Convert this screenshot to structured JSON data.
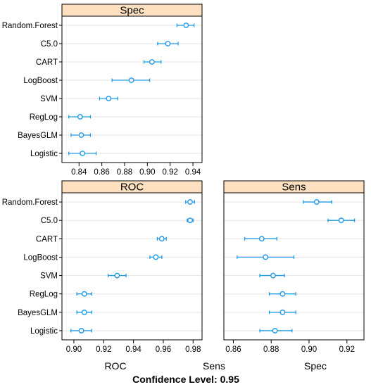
{
  "footer": "Confidence Level: 0.95",
  "bottom_labels": {
    "left": "ROC",
    "middle": "Sens",
    "right": "Spec"
  },
  "colors": {
    "strip_bg": "#fde0bf",
    "point": "#1f9ae6",
    "grid": "#e6e6e6",
    "frame": "#000000"
  },
  "chart_data": [
    {
      "type": "dotplot",
      "title": "Spec",
      "categories": [
        "Random.Forest",
        "C5.0",
        "CART",
        "LogBoost",
        "SVM",
        "RegLog",
        "BayesGLM",
        "Logistic"
      ],
      "estimate": [
        0.934,
        0.918,
        0.904,
        0.886,
        0.866,
        0.841,
        0.842,
        0.843
      ],
      "lower": [
        0.926,
        0.909,
        0.897,
        0.869,
        0.858,
        0.831,
        0.833,
        0.831
      ],
      "upper": [
        0.941,
        0.927,
        0.912,
        0.902,
        0.874,
        0.85,
        0.85,
        0.855
      ],
      "xlim": [
        0.825,
        0.948
      ],
      "xticks": [
        0.84,
        0.86,
        0.88,
        0.9,
        0.92,
        0.94
      ],
      "tick_labels": [
        "0.84",
        "0.86",
        "0.88",
        "0.90",
        "0.92",
        "0.94"
      ],
      "grid": true
    },
    {
      "type": "dotplot",
      "title": "ROC",
      "categories": [
        "Random.Forest",
        "C5.0",
        "CART",
        "LogBoost",
        "SVM",
        "RegLog",
        "BayesGLM",
        "Logistic"
      ],
      "estimate": [
        0.978,
        0.978,
        0.959,
        0.955,
        0.929,
        0.907,
        0.907,
        0.905
      ],
      "lower": [
        0.975,
        0.976,
        0.956,
        0.951,
        0.923,
        0.902,
        0.902,
        0.898
      ],
      "upper": [
        0.981,
        0.98,
        0.962,
        0.959,
        0.935,
        0.912,
        0.912,
        0.912
      ],
      "xlim": [
        0.892,
        0.986
      ],
      "xticks": [
        0.9,
        0.92,
        0.94,
        0.96,
        0.98
      ],
      "tick_labels": [
        "0.90",
        "0.92",
        "0.94",
        "0.96",
        "0.98"
      ],
      "grid": true
    },
    {
      "type": "dotplot",
      "title": "Sens",
      "categories": [
        "Random.Forest",
        "C5.0",
        "CART",
        "LogBoost",
        "SVM",
        "RegLog",
        "BayesGLM",
        "Logistic"
      ],
      "estimate": [
        0.904,
        0.917,
        0.875,
        0.877,
        0.881,
        0.886,
        0.886,
        0.882
      ],
      "lower": [
        0.897,
        0.91,
        0.866,
        0.862,
        0.874,
        0.879,
        0.879,
        0.874
      ],
      "upper": [
        0.912,
        0.924,
        0.883,
        0.892,
        0.887,
        0.893,
        0.893,
        0.891
      ],
      "xlim": [
        0.855,
        0.929
      ],
      "xticks": [
        0.86,
        0.88,
        0.9,
        0.92
      ],
      "tick_labels": [
        "0.86",
        "0.88",
        "0.90",
        "0.92"
      ],
      "grid": true
    }
  ]
}
